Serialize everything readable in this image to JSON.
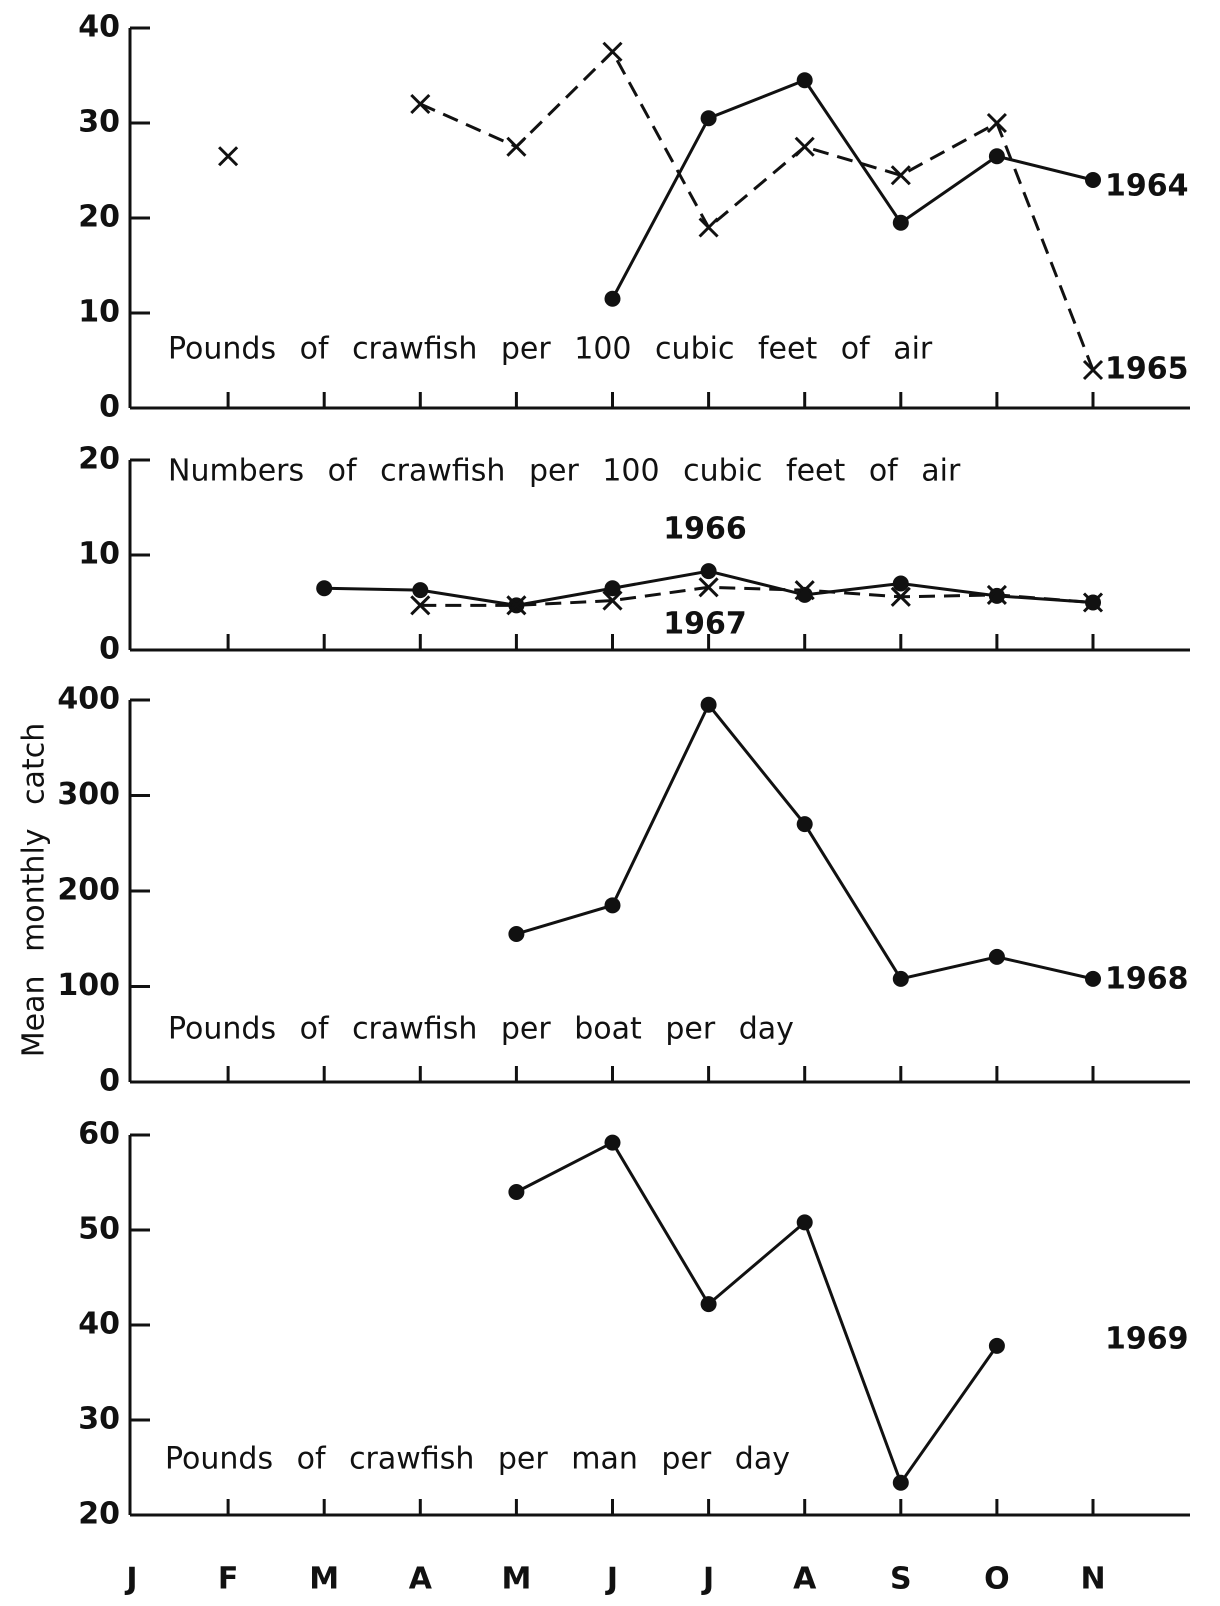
{
  "chart_data": {
    "type": "line",
    "ylabel": "Mean monthly catch",
    "categories": [
      "J",
      "F",
      "M",
      "A",
      "M",
      "J",
      "J",
      "A",
      "S",
      "O",
      "N"
    ],
    "panels": [
      {
        "annotation": "Pounds of crawfish per 100 cubic feet of air",
        "ylim": [
          0,
          40
        ],
        "yticks": [
          0,
          10,
          20,
          30,
          40
        ],
        "series": [
          {
            "name": "1964",
            "color": "#111111",
            "dashed": false,
            "marker": "dot",
            "values": [
              null,
              null,
              null,
              null,
              null,
              11.5,
              30.5,
              34.5,
              19.5,
              26.5,
              24
            ]
          },
          {
            "name": "1965",
            "color": "#111111",
            "dashed": true,
            "marker": "x",
            "values": [
              null,
              26.5,
              null,
              32,
              27.5,
              37.5,
              19,
              27.5,
              24.5,
              30,
              4
            ]
          }
        ]
      },
      {
        "annotation": "Numbers of crawfish per 100 cubic feet of air",
        "ylim": [
          0,
          20
        ],
        "yticks": [
          0,
          10,
          20
        ],
        "series": [
          {
            "name": "1966",
            "color": "#111111",
            "dashed": false,
            "marker": "dot",
            "values": [
              null,
              null,
              6.5,
              6.3,
              4.7,
              6.5,
              8.3,
              5.8,
              7,
              5.7,
              5
            ]
          },
          {
            "name": "1967",
            "color": "#111111",
            "dashed": true,
            "marker": "x",
            "values": [
              null,
              null,
              null,
              4.7,
              4.7,
              5.2,
              6.6,
              6.3,
              5.6,
              5.8,
              5
            ]
          }
        ]
      },
      {
        "annotation": "Pounds of crawfish per boat per day",
        "ylim": [
          0,
          400
        ],
        "yticks": [
          0,
          100,
          200,
          300,
          400
        ],
        "series": [
          {
            "name": "1968",
            "color": "#111111",
            "dashed": false,
            "marker": "dot",
            "values": [
              null,
              null,
              null,
              null,
              155,
              185,
              395,
              270,
              108,
              131,
              108
            ]
          }
        ]
      },
      {
        "annotation": "Pounds of crawfish per man per day",
        "ylim": [
          20,
          60
        ],
        "yticks": [
          20,
          30,
          40,
          50,
          60
        ],
        "series": [
          {
            "name": "1969",
            "color": "#111111",
            "dashed": false,
            "marker": "dot",
            "values": [
              null,
              null,
              null,
              null,
              54,
              59.2,
              42.2,
              50.8,
              23.4,
              37.8,
              null
            ]
          }
        ]
      }
    ]
  }
}
